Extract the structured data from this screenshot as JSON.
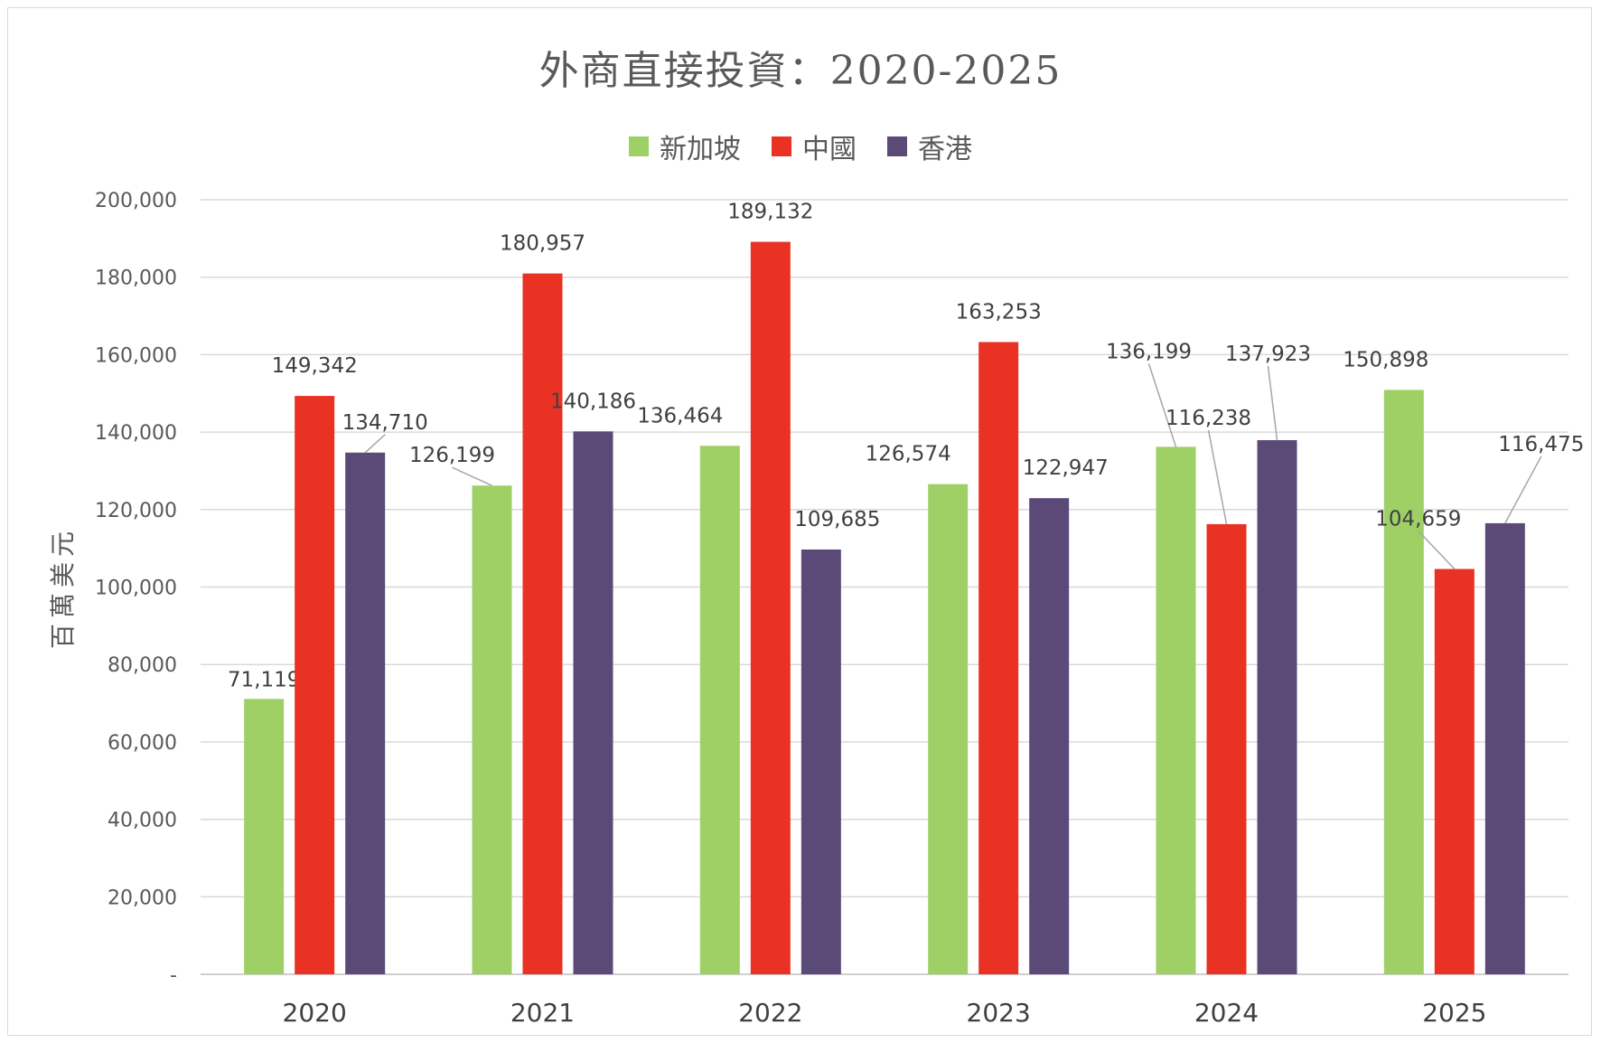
{
  "chart_data": {
    "type": "bar",
    "title": "外商直接投資：2020-2025",
    "ylabel": "百萬美元",
    "xlabel": "",
    "categories": [
      "2020",
      "2021",
      "2022",
      "2023",
      "2024",
      "2025"
    ],
    "ylim": [
      0,
      200000
    ],
    "yticks": [
      0,
      20000,
      40000,
      60000,
      80000,
      100000,
      120000,
      140000,
      160000,
      180000,
      200000
    ],
    "ytick_labels": [
      "-",
      "20,000",
      "40,000",
      "60,000",
      "80,000",
      "100,000",
      "120,000",
      "140,000",
      "160,000",
      "180,000",
      "200,000"
    ],
    "grid": true,
    "legend_position": "top",
    "series": [
      {
        "name": "新加坡",
        "color": "#9fd066",
        "values": [
          71119,
          126199,
          136464,
          126574,
          136199,
          150898
        ],
        "labels": [
          "71,119",
          "126,199",
          "136,464",
          "126,574",
          "136,199",
          "150,898"
        ]
      },
      {
        "name": "中國",
        "color": "#e93224",
        "values": [
          149342,
          180957,
          189132,
          163253,
          116238,
          104659
        ],
        "labels": [
          "149,342",
          "180,957",
          "189,132",
          "163,253",
          "116,238",
          "104,659"
        ]
      },
      {
        "name": "香港",
        "color": "#5b4a78",
        "values": [
          134710,
          140186,
          109685,
          122947,
          137923,
          116475
        ],
        "labels": [
          "134,710",
          "140,186",
          "109,685",
          "122,947",
          "137,923",
          "116,475"
        ]
      }
    ]
  }
}
